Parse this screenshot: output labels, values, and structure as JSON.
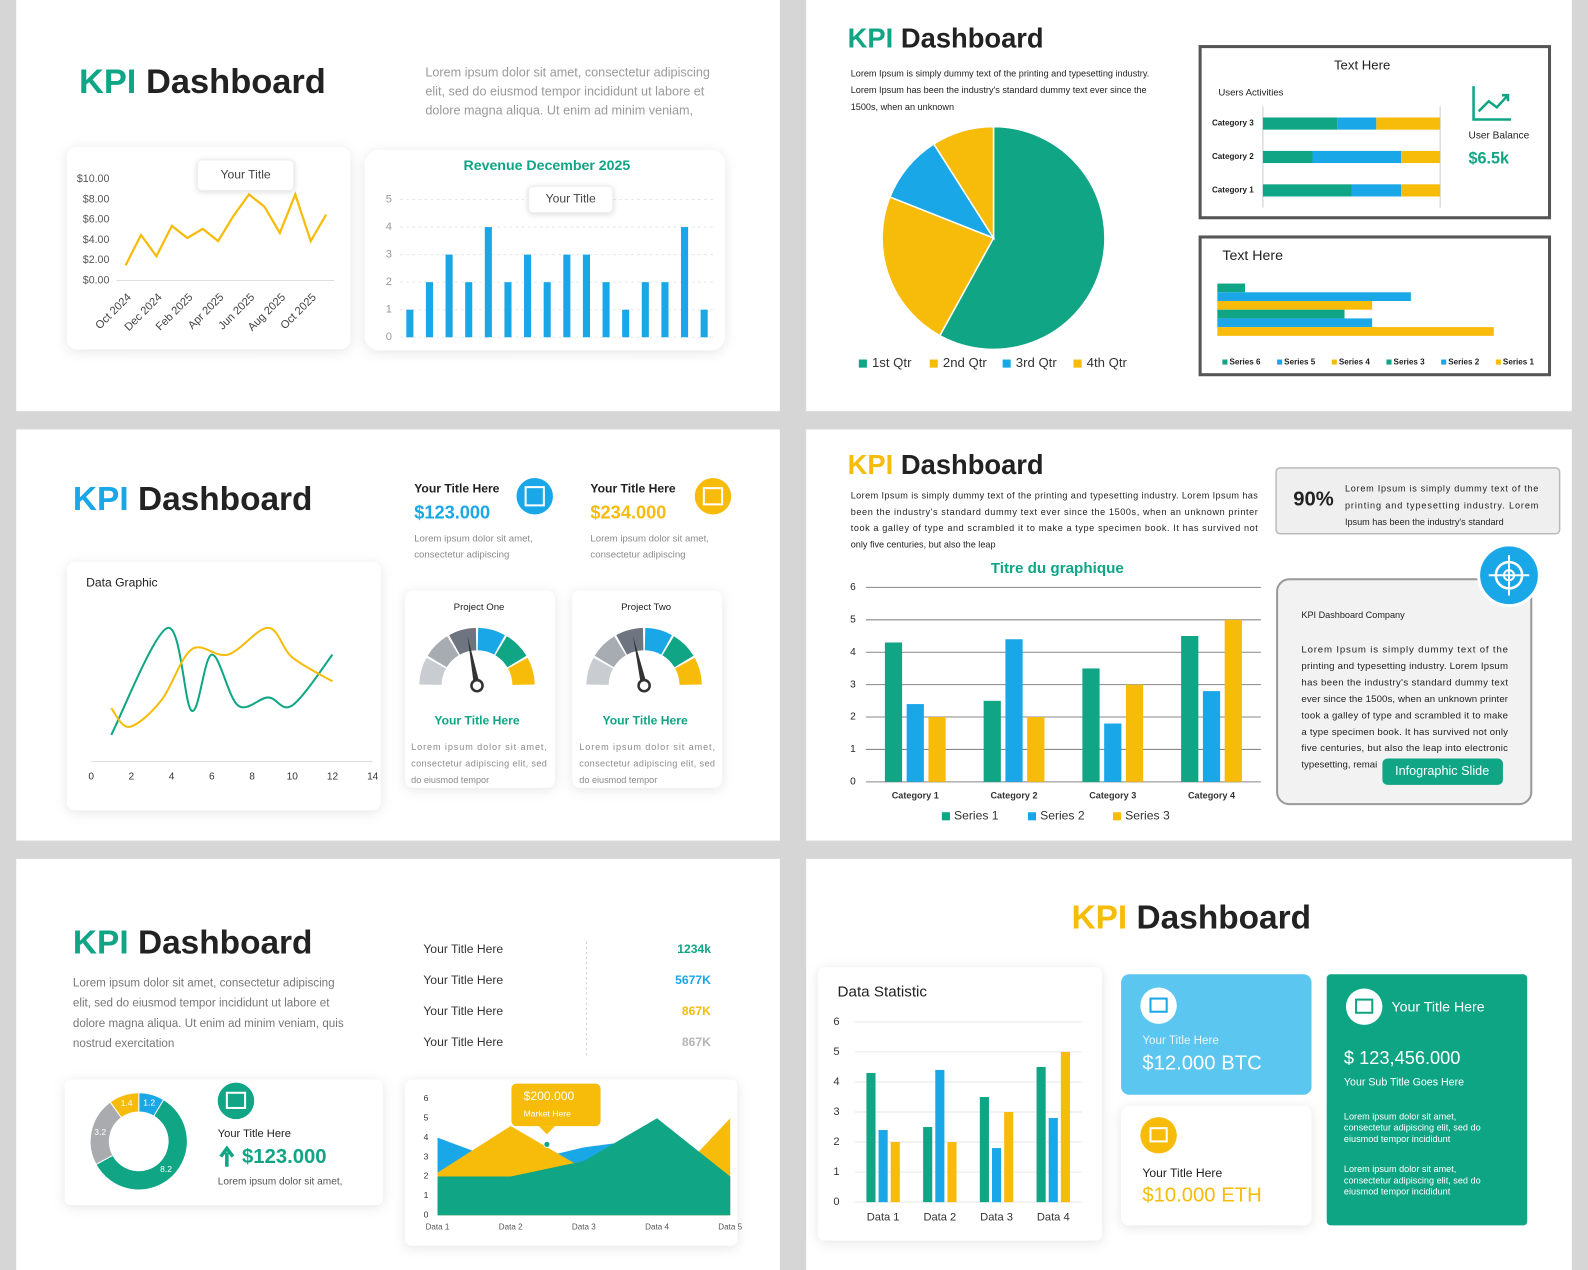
{
  "slides": [
    {
      "kpi": "KPI",
      "title": "Dashboard",
      "paragraph": [
        "Lorem ipsum dolor sit amet, consectetur adipiscing",
        "elit, sed do eiusmod tempor incididunt ut labore et",
        "dolore magna aliqua. Ut enim ad minim veniam,"
      ]
    },
    {
      "kpi": "KPI",
      "title": "Dashboard",
      "paragraph": [
        "Lorem Ipsum is simply dummy text of the printing and typesetting industry.",
        "Lorem Ipsum has been the industry's standard dummy text ever since the",
        "1500s, when an unknown"
      ],
      "user_balance_label": "User Balance",
      "user_balance": "$6.5k"
    },
    {
      "kpi": "KPI",
      "title": "Dashboard",
      "cards": [
        {
          "title": "Your Title Here",
          "value": "$123.000",
          "text": [
            "Lorem ipsum dolor sit amet,",
            "consectetur adipiscing"
          ]
        },
        {
          "title": "Your Title Here",
          "value": "$234.000",
          "text": [
            "Lorem ipsum dolor sit amet,",
            "consectetur adipiscing"
          ]
        }
      ],
      "gauge_cards": [
        {
          "heading": "Your Title Here",
          "text": [
            "Lorem ipsum dolor sit amet,",
            "consectetur adipiscing elit, sed",
            "do eiusmod tempor"
          ]
        },
        {
          "heading": "Your Title Here",
          "text": [
            "Lorem ipsum dolor sit amet,",
            "consectetur adipiscing elit, sed",
            "do eiusmod tempor"
          ]
        }
      ]
    },
    {
      "kpi": "KPI",
      "title": "Dashboard",
      "paragraph": [
        "Lorem Ipsum is simply dummy text of the printing and typesetting industry. Lorem Ipsum has",
        "been the industry's standard dummy text ever since the 1500s, when an unknown printer",
        "took a galley of type and scrambled it to make a type specimen book. It has survived not",
        "only five centuries, but also the leap"
      ],
      "stat": {
        "value": "90%",
        "text": [
          "Lorem Ipsum is simply dummy text of the",
          "printing and typesetting industry. Lorem",
          "Ipsum has been the industry's standard"
        ]
      },
      "card": {
        "title": "KPI Dashboard Company",
        "text": [
          "Lorem Ipsum is simply dummy text of the",
          "printing and typesetting industry. Lorem Ipsum",
          "has been the industry's standard dummy text",
          "ever since the 1500s, when an unknown printer",
          "took a galley of type and scrambled it to make",
          "a type specimen book. It has survived not only",
          "five centuries, but also the leap into electronic",
          "typesetting, remai"
        ],
        "button": "Infographic Slide"
      }
    },
    {
      "kpi": "KPI",
      "title": "Dashboard",
      "paragraph": [
        "Lorem ipsum dolor sit amet, consectetur adipiscing",
        "elit, sed do eiusmod tempor incididunt ut labore et",
        "dolore magna aliqua. Ut enim ad minim veniam, quis",
        "nostrud exercitation"
      ],
      "list": [
        {
          "label": "Your Title Here",
          "value": "1234k"
        },
        {
          "label": "Your Title Here",
          "value": "5677K"
        },
        {
          "label": "Your Title Here",
          "value": "867K"
        },
        {
          "label": "Your Title Here",
          "value": "867K"
        }
      ],
      "donut_card": {
        "title": "Your Title Here",
        "value": "$123.000",
        "text": "Lorem ipsum dolor sit amet,"
      }
    },
    {
      "kpi": "KPI",
      "title": "Dashboard",
      "btc": {
        "title": "Your Title Here",
        "value": "$12.000 BTC"
      },
      "eth": {
        "title": "Your Title Here",
        "value": "$10.000 ETH"
      },
      "main": {
        "title": "Your Title Here",
        "value": "$ 123,456.000",
        "subtitle": "Your Sub Title Goes Here",
        "text1": [
          "Lorem ipsum dolor sit amet,",
          "consectetur adipiscing elit, sed do",
          "eiusmod tempor incididunt"
        ],
        "text2": [
          "Lorem ipsum dolor sit amet,",
          "consectetur adipiscing elit, sed do",
          "eiusmod tempor incididunt"
        ]
      }
    }
  ],
  "chart_data": [
    {
      "type": "line",
      "annotation": "Your Title",
      "categories": [
        "Oct 2024",
        null,
        "Dec 2024",
        null,
        "Feb 2025",
        null,
        "Apr 2025",
        null,
        "Jun 2025",
        null,
        "Aug 2025",
        null,
        "Oct 2025",
        null
      ],
      "series": [
        {
          "color": "#f7bb0a",
          "values": [
            1.5,
            4.5,
            2.4,
            5.4,
            4.2,
            5.1,
            3.9,
            6.4,
            8.5,
            7.3,
            4.7,
            8.5,
            3.9,
            6.5
          ]
        }
      ],
      "ylim": [
        0,
        10
      ],
      "yticks": [
        {
          "value": 0,
          "label": "$0.00"
        },
        {
          "value": 2,
          "label": "$2.00"
        },
        {
          "value": 4,
          "label": "$4.00"
        },
        {
          "value": 6,
          "label": "$6.00"
        },
        {
          "value": 8,
          "label": "$8.00"
        },
        {
          "value": 10,
          "label": "$10.00"
        }
      ],
      "grid": false
    },
    {
      "type": "bar",
      "title": "Revenue December 2025",
      "annotation": "Your Title",
      "categories": [
        null,
        null,
        null,
        null,
        null,
        null,
        null,
        null,
        null,
        null,
        null,
        null,
        null,
        null,
        null,
        null
      ],
      "values": [
        1,
        2,
        3,
        2,
        4,
        2,
        3,
        2,
        3,
        3,
        2,
        1,
        2,
        2,
        4,
        1
      ],
      "color": "#1aa7e8",
      "ylim": [
        0,
        5
      ],
      "yticks": [
        0,
        1,
        2,
        3,
        4,
        5
      ],
      "grid": true
    },
    {
      "type": "pie",
      "categories": [
        "1st Qtr",
        "2nd Qtr",
        "3rd Qtr",
        "4th Qtr"
      ],
      "values": [
        58,
        23,
        10,
        9
      ],
      "colors": [
        "#0fa585",
        "#f7bb0a",
        "#1aa7e8",
        "#f7bb0a"
      ]
    },
    {
      "type": "stacked-hbar",
      "title": "Text Here",
      "subtitle": "Users Activities",
      "categories": [
        "Category 3",
        "Category 2",
        "Category 1"
      ],
      "series": [
        {
          "color": "#0fa585",
          "values": [
            4.2,
            2.8,
            5.0
          ]
        },
        {
          "color": "#1aa7e8",
          "values": [
            2.2,
            5.0,
            2.8
          ]
        },
        {
          "color": "#f7bb0a",
          "values": [
            3.6,
            2.2,
            2.2
          ]
        }
      ]
    },
    {
      "type": "hbar",
      "title": "Text Here",
      "series": [
        {
          "name": "Series 6",
          "color": "#0fa585",
          "values": [
            1.0
          ]
        },
        {
          "name": "Series 5",
          "color": "#1aa7e8",
          "values": [
            7.0
          ]
        },
        {
          "name": "Series 4",
          "color": "#f7bb0a",
          "values": [
            5.6
          ]
        },
        {
          "name": "Series 3",
          "color": "#0fa585",
          "values": [
            4.6
          ]
        },
        {
          "name": "Series 2",
          "color": "#1aa7e8",
          "values": [
            5.6
          ]
        },
        {
          "name": "Series 1",
          "color": "#f7bb0a",
          "values": [
            10
          ]
        }
      ]
    },
    {
      "type": "line",
      "title": "Data Graphic",
      "curve": "smooth",
      "xlim": [
        0,
        14
      ],
      "xticks": [
        0,
        2,
        4,
        6,
        8,
        10,
        12,
        14
      ],
      "ylim": [
        0,
        5
      ],
      "series": [
        {
          "color": "#0fa585",
          "x": [
            1,
            3.8,
            5,
            6,
            7.3,
            8.8,
            10,
            12
          ],
          "values": [
            1.0,
            5.0,
            1.9,
            4.0,
            2.1,
            2.4,
            2.1,
            4.0
          ]
        },
        {
          "color": "#f7bb0a",
          "x": [
            1,
            1.9,
            3.5,
            5,
            6.8,
            8.8,
            10,
            12
          ],
          "values": [
            2.0,
            1.3,
            2.3,
            4.2,
            4.0,
            5.0,
            3.9,
            3.0
          ]
        }
      ]
    },
    {
      "type": "gauge",
      "title": "Project One",
      "value": 44,
      "ylim": [
        0,
        100
      ]
    },
    {
      "type": "gauge",
      "title": "Project Two",
      "value": 43,
      "ylim": [
        0,
        100
      ]
    },
    {
      "type": "bar",
      "title": "Titre du graphique",
      "categories": [
        "Category 1",
        "Category 2",
        "Category 3",
        "Category 4"
      ],
      "series": [
        {
          "name": "Series 1",
          "color": "#0fa585",
          "values": [
            4.3,
            2.5,
            3.5,
            4.5
          ]
        },
        {
          "name": "Series 2",
          "color": "#1aa7e8",
          "values": [
            2.4,
            4.4,
            1.8,
            2.8
          ]
        },
        {
          "name": "Series 3",
          "color": "#f7bb0a",
          "values": [
            2.0,
            2.0,
            3.0,
            5.0
          ]
        }
      ],
      "ylim": [
        0,
        6
      ],
      "yticks": [
        0,
        1,
        2,
        3,
        4,
        5,
        6
      ],
      "grid": true
    },
    {
      "type": "donut",
      "values": [
        1.2,
        8.2,
        3.2,
        1.4
      ],
      "colors": [
        "#1aa7e8",
        "#0fa585",
        "#a9abae",
        "#f7bb0a"
      ]
    },
    {
      "type": "area",
      "annotations": [
        "$200.000",
        "Market Here"
      ],
      "categories": [
        "Data 1",
        "Data 2",
        "Data 3",
        "Data 4",
        "Data 5"
      ],
      "series": [
        {
          "color": "#1aa7e8",
          "values": [
            4,
            2.6,
            3.5,
            4,
            2
          ]
        },
        {
          "color": "#f7bb0a",
          "values": [
            2.2,
            4.6,
            2.4,
            1,
            5
          ]
        },
        {
          "color": "#0fa585",
          "values": [
            2,
            2,
            2.8,
            5,
            2
          ]
        }
      ],
      "ylim": [
        0,
        6
      ],
      "yticks": [
        0,
        1,
        2,
        3,
        4,
        5,
        6
      ],
      "grid": false
    },
    {
      "type": "bar",
      "title": "Data Statistic",
      "categories": [
        "Data 1",
        "Data 2",
        "Data 3",
        "Data 4"
      ],
      "series": [
        {
          "color": "#0fa585",
          "values": [
            4.3,
            2.5,
            3.5,
            4.5
          ]
        },
        {
          "color": "#1aa7e8",
          "values": [
            2.4,
            4.4,
            1.8,
            2.8
          ]
        },
        {
          "color": "#f7bb0a",
          "values": [
            2.0,
            2.0,
            3.0,
            5.0
          ]
        }
      ],
      "ylim": [
        0,
        6
      ],
      "yticks": [
        0,
        1,
        2,
        3,
        4,
        5,
        6
      ],
      "grid": true
    }
  ]
}
